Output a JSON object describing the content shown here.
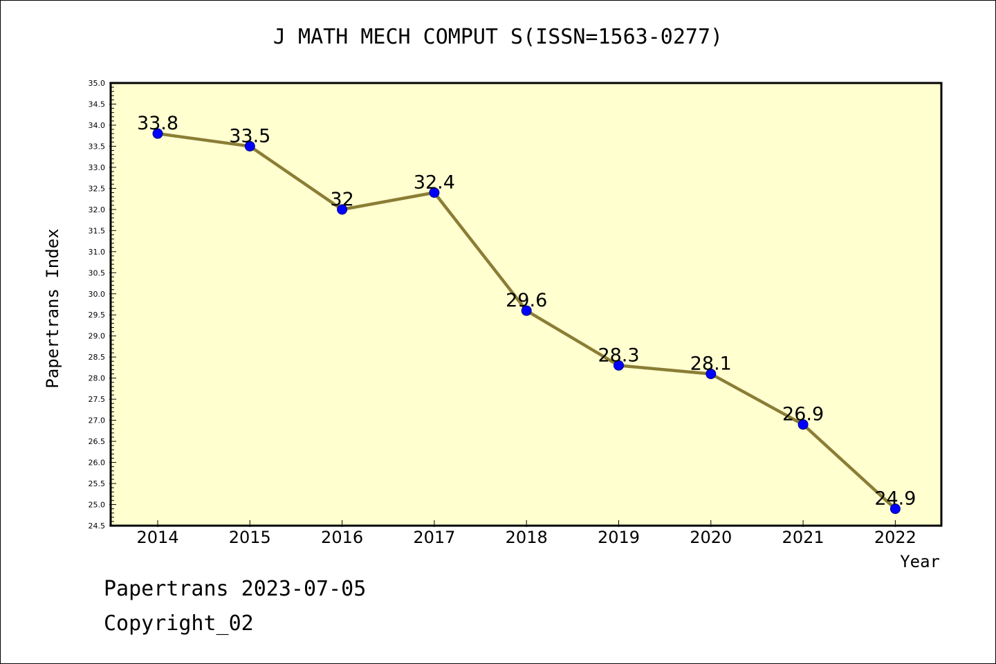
{
  "chart_data": {
    "type": "line",
    "title": "J MATH MECH COMPUT S(ISSN=1563-0277)",
    "xlabel": "Year",
    "ylabel": "Papertrans Index",
    "categories": [
      "2014",
      "2015",
      "2016",
      "2017",
      "2018",
      "2019",
      "2020",
      "2021",
      "2022"
    ],
    "series": [
      {
        "values": [
          33.8,
          33.5,
          32,
          32.4,
          29.6,
          28.3,
          28.1,
          26.9,
          24.9
        ]
      }
    ],
    "data_labels": [
      "33.8",
      "33.5",
      "32",
      "32.4",
      "29.6",
      "28.3",
      "28.1",
      "26.9",
      "24.9"
    ],
    "ylim": [
      24.5,
      35.0
    ],
    "yticks": [
      "24.5",
      "25.0",
      "25.5",
      "26.0",
      "26.5",
      "27.0",
      "27.5",
      "28.0",
      "28.5",
      "29.0",
      "29.5",
      "30.0",
      "30.5",
      "31.0",
      "31.5",
      "32.0",
      "32.5",
      "33.0",
      "33.5",
      "34.0",
      "34.5",
      "35.0"
    ],
    "grid": false,
    "colors": {
      "plot_background": "#ffffd0",
      "line": "#8b7d35",
      "marker_fill": "#0000ff",
      "marker_edge": "#000080"
    }
  },
  "footer": {
    "date_line": "Papertrans 2023-07-05",
    "copyright": "Copyright_02"
  }
}
